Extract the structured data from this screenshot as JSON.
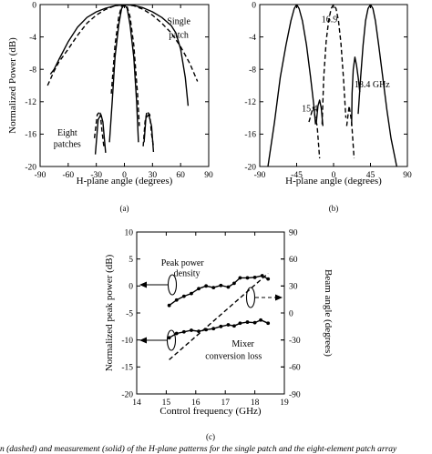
{
  "chart_data": [
    {
      "type": "line",
      "panel": "(a)",
      "xlabel": "H-plane angle  (degrees)",
      "ylabel": "Normalized Power  (dB)",
      "xlim": [
        -90,
        90
      ],
      "ylim": [
        -20,
        0
      ],
      "xticks": [
        -90,
        -60,
        -30,
        0,
        30,
        60,
        90
      ],
      "yticks": [
        -20,
        -16,
        -12,
        -8,
        -4,
        0
      ],
      "annotations": [
        {
          "text": "Single",
          "x": 58,
          "y": -2.4
        },
        {
          "text": "patch",
          "x": 58,
          "y": -4.1
        },
        {
          "text": "Eight",
          "x": -61,
          "y": -16.2
        },
        {
          "text": "patches",
          "x": -61,
          "y": -17.6
        }
      ],
      "series": [
        {
          "style": "dashed",
          "points": [
            [
              -82,
              -10
            ],
            [
              -75,
              -8.2
            ],
            [
              -70,
              -7.1
            ],
            [
              -60,
              -5.5
            ],
            [
              -50,
              -3.8
            ],
            [
              -40,
              -2.3
            ],
            [
              -30,
              -1.3
            ],
            [
              -20,
              -0.6
            ],
            [
              -10,
              -0.15
            ],
            [
              0,
              0
            ],
            [
              10,
              -0.15
            ],
            [
              20,
              -0.6
            ],
            [
              30,
              -1.3
            ],
            [
              40,
              -2.3
            ],
            [
              50,
              -3.5
            ],
            [
              60,
              -5.2
            ],
            [
              70,
              -7.3
            ],
            [
              78,
              -9.5
            ]
          ]
        },
        {
          "style": "solid",
          "points": [
            [
              -79,
              -8.6
            ],
            [
              -75,
              -8
            ],
            [
              -70,
              -6.8
            ],
            [
              -60,
              -4.6
            ],
            [
              -50,
              -2.8
            ],
            [
              -40,
              -1.6
            ],
            [
              -30,
              -0.9
            ],
            [
              -20,
              -0.45
            ],
            [
              -10,
              -0.15
            ],
            [
              0,
              0
            ],
            [
              10,
              -0.1
            ],
            [
              20,
              -0.4
            ],
            [
              30,
              -0.9
            ],
            [
              40,
              -1.6
            ],
            [
              50,
              -2.6
            ],
            [
              55,
              -3.5
            ],
            [
              60,
              -5.5
            ],
            [
              65,
              -9
            ],
            [
              68,
              -12.5
            ]
          ]
        },
        {
          "style": "dashed",
          "points": [
            [
              -14,
              -11
            ],
            [
              -10,
              -5
            ],
            [
              -6,
              -1.5
            ],
            [
              -3,
              -0.2
            ],
            [
              0,
              0
            ],
            [
              3,
              -0.3
            ],
            [
              6,
              -1.5
            ],
            [
              10,
              -5
            ],
            [
              14,
              -11
            ],
            [
              16,
              -15
            ]
          ]
        },
        {
          "style": "solid",
          "points": [
            [
              -16,
              -17
            ],
            [
              -13,
              -12
            ],
            [
              -10,
              -6.5
            ],
            [
              -6,
              -2.5
            ],
            [
              -3,
              -0.5
            ],
            [
              0,
              0
            ],
            [
              3,
              -0.5
            ],
            [
              6,
              -2.5
            ],
            [
              10,
              -6.5
            ],
            [
              13,
              -12
            ],
            [
              15,
              -17
            ]
          ]
        },
        {
          "style": "dashed",
          "points": [
            [
              -32,
              -16.5
            ],
            [
              -29,
              -13.6
            ],
            [
              -26,
              -13.2
            ],
            [
              -24,
              -15.5
            ],
            [
              -22,
              -17.5
            ]
          ]
        },
        {
          "style": "solid",
          "points": [
            [
              -31,
              -18.5
            ],
            [
              -28,
              -14.2
            ],
            [
              -25,
              -13.6
            ],
            [
              -23,
              -14.5
            ],
            [
              -20,
              -18.3
            ]
          ]
        },
        {
          "style": "dashed",
          "points": [
            [
              20,
              -17.5
            ],
            [
              22,
              -14.5
            ],
            [
              24,
              -13.2
            ],
            [
              27,
              -13.6
            ],
            [
              29,
              -16
            ],
            [
              31,
              -17.5
            ]
          ]
        },
        {
          "style": "solid",
          "points": [
            [
              21,
              -17
            ],
            [
              23,
              -14
            ],
            [
              26,
              -13.6
            ],
            [
              29,
              -15
            ],
            [
              31,
              -18.2
            ]
          ]
        }
      ]
    },
    {
      "type": "line",
      "panel": "(b)",
      "xlabel": "H-plane angle  (degrees)",
      "ylabel": "",
      "xlim": [
        -90,
        90
      ],
      "ylim": [
        -20,
        0
      ],
      "xticks": [
        -90,
        -45,
        0,
        45,
        90
      ],
      "yticks": [
        -20,
        -16,
        -12,
        -8,
        -4,
        0
      ],
      "annotations": [
        {
          "text": "16.9",
          "x": -5,
          "y": -2.2
        },
        {
          "text": "18.4 GHz",
          "x": 47,
          "y": -10.2
        },
        {
          "text": "15.4",
          "x": -29,
          "y": -13.2
        }
      ],
      "series": [
        {
          "style": "solid",
          "points": [
            [
              -80,
              -20
            ],
            [
              -72,
              -14.5
            ],
            [
              -65,
              -9
            ],
            [
              -58,
              -5
            ],
            [
              -52,
              -2
            ],
            [
              -48,
              -0.5
            ],
            [
              -45,
              0
            ],
            [
              -42,
              -0.5
            ],
            [
              -38,
              -2
            ],
            [
              -33,
              -5
            ],
            [
              -28,
              -9
            ],
            [
              -24,
              -12.5
            ],
            [
              -22,
              -14.8
            ]
          ]
        },
        {
          "style": "solid",
          "points": [
            [
              -21,
              -14.5
            ],
            [
              -19,
              -12.5
            ],
            [
              -17,
              -11.8
            ],
            [
              -15,
              -12.8
            ],
            [
              -13,
              -15
            ]
          ]
        },
        {
          "style": "dashed",
          "points": [
            [
              -30,
              -14.5
            ],
            [
              -25,
              -12.7
            ],
            [
              -20,
              -15
            ],
            [
              -17,
              -19
            ]
          ]
        },
        {
          "style": "dashed",
          "points": [
            [
              -14,
              -14.8
            ],
            [
              -12,
              -9
            ],
            [
              -9,
              -4.5
            ],
            [
              -6,
              -2
            ],
            [
              -3,
              -0.5
            ],
            [
              0,
              0
            ],
            [
              3,
              -0.5
            ],
            [
              6,
              -2
            ],
            [
              9,
              -4.8
            ],
            [
              12,
              -9
            ],
            [
              15,
              -14
            ]
          ]
        },
        {
          "style": "dashed",
          "points": [
            [
              16,
              -15
            ],
            [
              19,
              -12.5
            ],
            [
              22,
              -14.5
            ],
            [
              25,
              -19
            ]
          ]
        },
        {
          "style": "solid",
          "points": [
            [
              22,
              -15
            ],
            [
              22.5,
              -11
            ],
            [
              24,
              -8
            ],
            [
              26,
              -6.5
            ],
            [
              28,
              -7.5
            ],
            [
              30,
              -9
            ],
            [
              32,
              -10.8
            ]
          ]
        },
        {
          "style": "solid",
          "points": [
            [
              30,
              -13.5
            ],
            [
              33,
              -9
            ],
            [
              36,
              -5
            ],
            [
              39,
              -2
            ],
            [
              42,
              -0.5
            ],
            [
              45,
              0
            ],
            [
              48,
              -0.5
            ],
            [
              51,
              -2
            ],
            [
              55,
              -5
            ],
            [
              60,
              -9
            ],
            [
              65,
              -13
            ],
            [
              70,
              -16.5
            ],
            [
              77,
              -20
            ]
          ]
        }
      ]
    },
    {
      "type": "line",
      "panel": "(c)",
      "xlabel": "Control frequency (GHz)",
      "ylabel": "Normalized peak power (dB)",
      "ylabel_right": "Beam angle (degrees)",
      "xlim": [
        14,
        19
      ],
      "ylim": [
        -20,
        10
      ],
      "ylim_right": [
        -90,
        90
      ],
      "xticks": [
        14,
        15,
        16,
        17,
        18,
        19
      ],
      "yticks": [
        -20,
        -15,
        -10,
        -5,
        0,
        5,
        10
      ],
      "yticks_right": [
        -90,
        -60,
        -30,
        0,
        30,
        60,
        90
      ],
      "annotations": [
        {
          "text": "Peak power",
          "x": 15.55,
          "y": 3.8
        },
        {
          "text": "density",
          "x": 15.7,
          "y": 1.8
        },
        {
          "text": "Mixer",
          "x": 17.6,
          "y": -11.2
        },
        {
          "text": "conversion loss",
          "x": 17.28,
          "y": -13.5
        }
      ],
      "series": [
        {
          "style": "solid-markers",
          "axis": "left",
          "points": [
            [
              15.1,
              -3.6
            ],
            [
              15.35,
              -2.6
            ],
            [
              15.6,
              -1.9
            ],
            [
              15.85,
              -1.4
            ],
            [
              16.1,
              -0.5
            ],
            [
              16.35,
              0
            ],
            [
              16.6,
              -0.3
            ],
            [
              16.85,
              0.1
            ],
            [
              17.1,
              -0.2
            ],
            [
              17.3,
              0.5
            ],
            [
              17.5,
              1.5
            ],
            [
              17.75,
              1.5
            ],
            [
              18,
              1.6
            ],
            [
              18.25,
              1.9
            ],
            [
              18.45,
              1.3
            ]
          ]
        },
        {
          "style": "solid-markers",
          "axis": "left",
          "points": [
            [
              15.1,
              -9.6
            ],
            [
              15.35,
              -8.8
            ],
            [
              15.6,
              -8.5
            ],
            [
              15.85,
              -8.2
            ],
            [
              16.1,
              -8.4
            ],
            [
              16.35,
              -8.1
            ],
            [
              16.6,
              -7.9
            ],
            [
              16.85,
              -7.5
            ],
            [
              17.1,
              -7.2
            ],
            [
              17.3,
              -7.4
            ],
            [
              17.5,
              -6.9
            ],
            [
              17.75,
              -6.7
            ],
            [
              18,
              -6.8
            ],
            [
              18.2,
              -6.3
            ],
            [
              18.45,
              -6.9
            ]
          ]
        },
        {
          "style": "dashed",
          "axis": "right",
          "points": [
            [
              15.1,
              -52
            ],
            [
              18.45,
              44
            ]
          ]
        }
      ]
    }
  ],
  "panel_labels": [
    "(a)",
    "(b)",
    "(c)"
  ],
  "caption": "n (dashed) and measurement (solid) of the H-plane patterns for the single patch and the eight-element patch array"
}
